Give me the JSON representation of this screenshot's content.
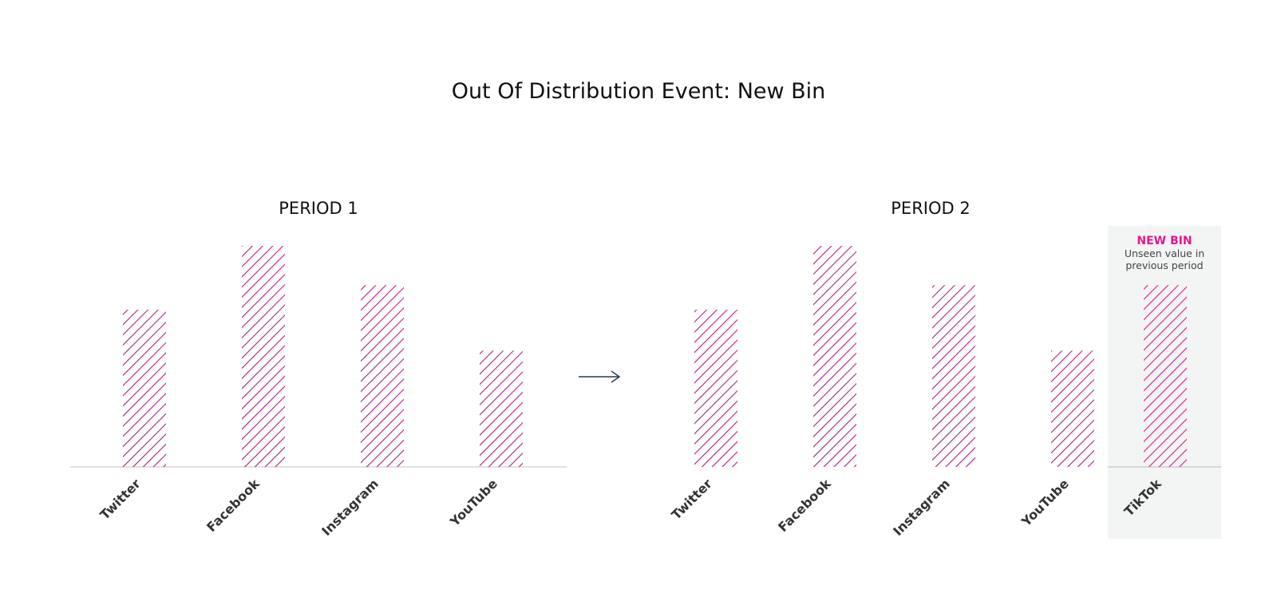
{
  "colors": {
    "title": "#111111",
    "period_title": "#111111",
    "axis": "#d9d9d9",
    "tick_label": "#333333",
    "highlight_bg": "#f3f4f4",
    "highlight_title": "#e5178f",
    "highlight_text": "#444444",
    "arrow": "#2b3a4f",
    "hatch_gradient": [
      "#9a1f73",
      "#c9228c",
      "#e5178f"
    ]
  },
  "arrow_icon": "arrow-right-icon",
  "chart_data": {
    "title": "Out Of Distribution Event: New Bin",
    "type": "bar",
    "panels": [
      {
        "title": "PERIOD 1",
        "categories": [
          "Twitter",
          "Facebook",
          "Instagram",
          "YouTube"
        ],
        "values": [
          192,
          270,
          222,
          142
        ],
        "ylim": [
          0,
          270
        ]
      },
      {
        "title": "PERIOD 2",
        "categories": [
          "Twitter",
          "Facebook",
          "Instagram",
          "YouTube",
          "TikTok"
        ],
        "values": [
          192,
          270,
          222,
          142,
          222
        ],
        "ylim": [
          0,
          270
        ]
      }
    ],
    "annotation": {
      "title": "NEW BIN",
      "lines": [
        "Unseen value in",
        "previous period"
      ]
    }
  }
}
